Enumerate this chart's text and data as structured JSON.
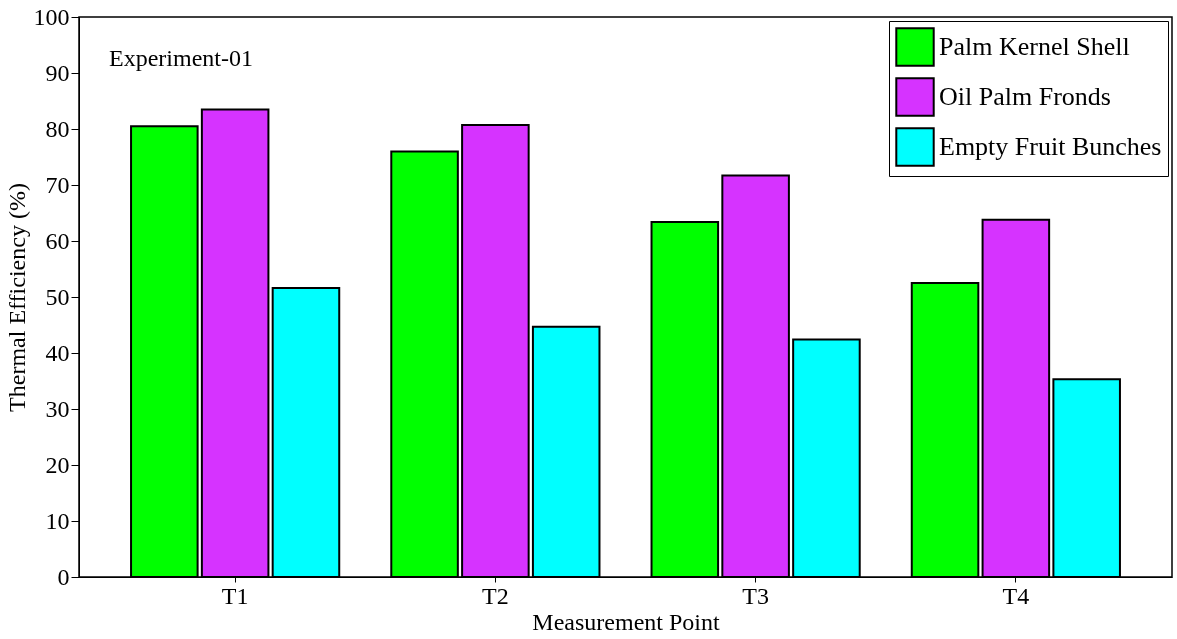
{
  "chart_data": {
    "type": "bar",
    "xlabel": "Measurement Point",
    "ylabel": "Thermal Efficiency (%)",
    "annotations": [
      "Experiment-01"
    ],
    "categories": [
      "T1",
      "T2",
      "T3",
      "T4"
    ],
    "series": [
      {
        "name": "Palm Kernel Shell",
        "color": "#00ff00",
        "values": [
          80.5,
          76,
          63.4,
          52.5
        ]
      },
      {
        "name": "Oil Palm Fronds",
        "color": "#d633ff",
        "values": [
          83.5,
          80.7,
          71.7,
          63.8
        ]
      },
      {
        "name": "Empty Fruit Bunches",
        "color": "#00ffff",
        "values": [
          51.6,
          44.7,
          42.4,
          35.3
        ]
      }
    ],
    "ylim": [
      0,
      100
    ],
    "yticks": [
      0,
      10,
      20,
      30,
      40,
      50,
      60,
      70,
      80,
      90,
      100
    ],
    "grid": false,
    "legend": "top right"
  }
}
